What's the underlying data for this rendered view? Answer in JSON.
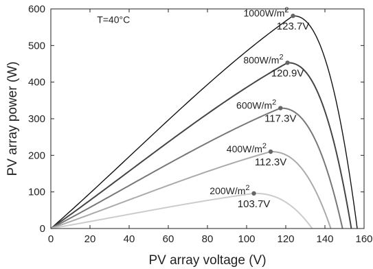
{
  "chart_data": {
    "type": "line",
    "title": "",
    "xlabel": "PV array voltage (V)",
    "ylabel": "PV array power (W)",
    "xlim": [
      0,
      160
    ],
    "ylim": [
      0,
      600
    ],
    "xticks": [
      0,
      20,
      40,
      60,
      80,
      100,
      120,
      140,
      160
    ],
    "yticks": [
      0,
      100,
      200,
      300,
      400,
      500,
      600
    ],
    "grid": false,
    "annotation": "T=40°C",
    "series": [
      {
        "irradiance": "1000W/m",
        "sup": "2",
        "mpp_label": "123.7V",
        "mpp_v": 123.7,
        "mpp_p": 581,
        "voc": 156.5,
        "color": "#111111"
      },
      {
        "irradiance": "800W/m",
        "sup": "2",
        "mpp_label": "120.9V",
        "mpp_v": 120.9,
        "mpp_p": 453,
        "voc": 153.5,
        "color": "#444444"
      },
      {
        "irradiance": "600W/m",
        "sup": "2",
        "mpp_label": "117.3V",
        "mpp_v": 117.3,
        "mpp_p": 329,
        "voc": 149.0,
        "color": "#777777"
      },
      {
        "irradiance": "400W/m",
        "sup": "2",
        "mpp_label": "112.3V",
        "mpp_v": 112.3,
        "mpp_p": 210,
        "voc": 143.0,
        "color": "#aaaaaa"
      },
      {
        "irradiance": "200W/m",
        "sup": "2",
        "mpp_label": "103.7V",
        "mpp_v": 103.7,
        "mpp_p": 96,
        "voc": 133.5,
        "color": "#cccccc"
      }
    ]
  }
}
